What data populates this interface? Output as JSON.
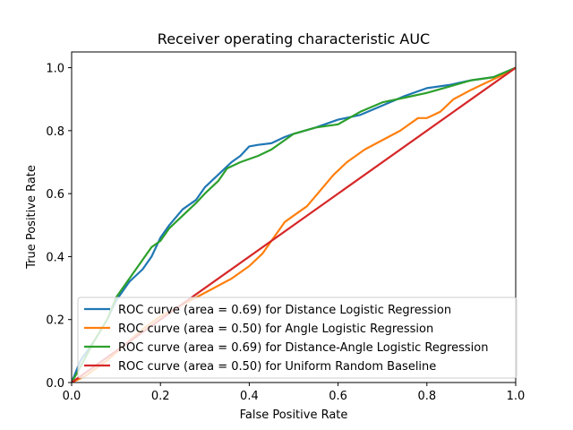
{
  "chart_data": {
    "type": "line",
    "title": "Receiver operating characteristic AUC",
    "xlabel": "False Positive Rate",
    "ylabel": "True Positive Rate",
    "xlim": [
      0.0,
      1.0
    ],
    "ylim": [
      0.0,
      1.05
    ],
    "xticks": [
      "0.0",
      "0.2",
      "0.4",
      "0.6",
      "0.8",
      "1.0"
    ],
    "yticks": [
      "0.0",
      "0.2",
      "0.4",
      "0.6",
      "0.8",
      "1.0"
    ],
    "grid": false,
    "legend_position": "lower-right",
    "series": [
      {
        "name": "ROC curve (area = 0.69) for Distance Logistic Regression",
        "color": "#1f77b4",
        "x": [
          0.0,
          0.02,
          0.05,
          0.08,
          0.1,
          0.13,
          0.16,
          0.18,
          0.2,
          0.22,
          0.25,
          0.28,
          0.3,
          0.33,
          0.36,
          0.38,
          0.4,
          0.42,
          0.45,
          0.48,
          0.5,
          0.55,
          0.6,
          0.65,
          0.7,
          0.75,
          0.8,
          0.85,
          0.9,
          0.95,
          1.0
        ],
        "y": [
          0.0,
          0.07,
          0.13,
          0.2,
          0.26,
          0.32,
          0.36,
          0.4,
          0.46,
          0.5,
          0.55,
          0.58,
          0.62,
          0.66,
          0.7,
          0.72,
          0.75,
          0.755,
          0.76,
          0.78,
          0.79,
          0.81,
          0.835,
          0.85,
          0.88,
          0.91,
          0.935,
          0.945,
          0.96,
          0.97,
          1.0
        ]
      },
      {
        "name": "ROC curve (area = 0.50) for Angle Logistic Regression",
        "color": "#ff7f0e",
        "x": [
          0.0,
          0.03,
          0.08,
          0.12,
          0.16,
          0.2,
          0.24,
          0.28,
          0.32,
          0.36,
          0.4,
          0.43,
          0.46,
          0.48,
          0.5,
          0.53,
          0.56,
          0.59,
          0.62,
          0.66,
          0.7,
          0.74,
          0.78,
          0.8,
          0.83,
          0.86,
          0.9,
          0.93,
          0.96,
          1.0
        ],
        "y": [
          0.0,
          0.02,
          0.07,
          0.12,
          0.17,
          0.21,
          0.24,
          0.27,
          0.3,
          0.33,
          0.37,
          0.41,
          0.47,
          0.51,
          0.53,
          0.56,
          0.61,
          0.66,
          0.7,
          0.74,
          0.77,
          0.8,
          0.84,
          0.84,
          0.86,
          0.9,
          0.93,
          0.95,
          0.97,
          1.0
        ]
      },
      {
        "name": "ROC curve (area = 0.69) for Distance-Angle Logistic Regression",
        "color": "#2ca02c",
        "x": [
          0.0,
          0.02,
          0.05,
          0.08,
          0.1,
          0.13,
          0.16,
          0.18,
          0.2,
          0.22,
          0.25,
          0.28,
          0.3,
          0.33,
          0.35,
          0.38,
          0.4,
          0.42,
          0.45,
          0.48,
          0.5,
          0.55,
          0.6,
          0.65,
          0.7,
          0.75,
          0.8,
          0.85,
          0.9,
          0.95,
          1.0
        ],
        "y": [
          0.0,
          0.05,
          0.13,
          0.2,
          0.27,
          0.33,
          0.39,
          0.43,
          0.45,
          0.49,
          0.53,
          0.57,
          0.6,
          0.64,
          0.68,
          0.7,
          0.71,
          0.72,
          0.74,
          0.77,
          0.79,
          0.81,
          0.82,
          0.86,
          0.89,
          0.905,
          0.92,
          0.94,
          0.96,
          0.97,
          1.0
        ]
      },
      {
        "name": "ROC curve (area = 0.50) for Uniform Random Baseline",
        "color": "#d62728",
        "x": [
          0.0,
          1.0
        ],
        "y": [
          0.0,
          1.0
        ]
      }
    ]
  }
}
